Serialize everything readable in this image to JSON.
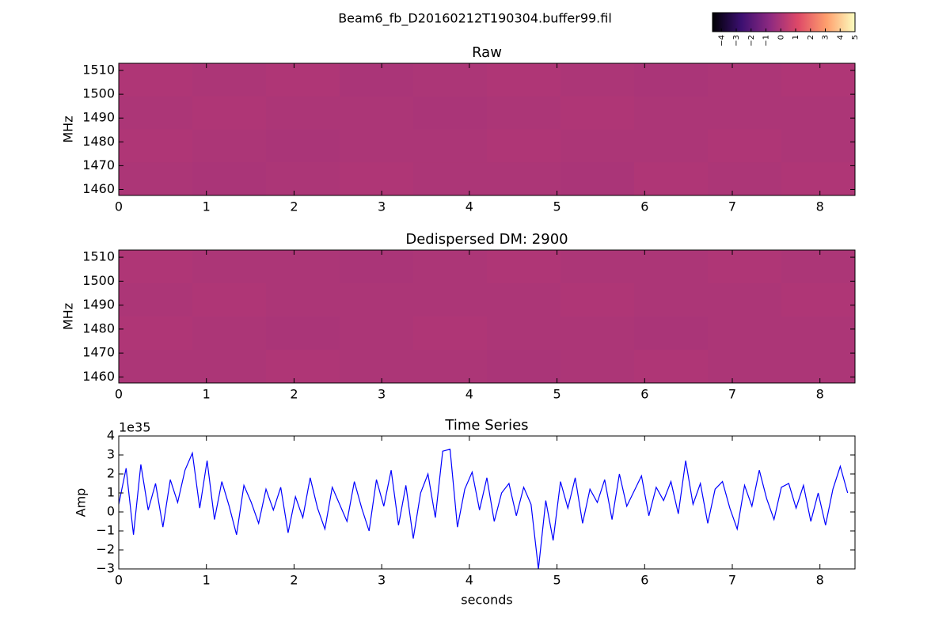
{
  "figure_title": "Beam6_fb_D20160212T190304.buffer99.fil",
  "colorbar": {
    "clim": [
      -4.6,
      5
    ],
    "ticks": [
      {
        "value": -4,
        "label": "−4"
      },
      {
        "value": -3,
        "label": "−3"
      },
      {
        "value": -2,
        "label": "−2"
      },
      {
        "value": -1,
        "label": "−1"
      },
      0,
      1,
      2,
      3,
      4,
      5
    ],
    "colormap": [
      "#000004",
      "#3b0f70",
      "#8c2981",
      "#de4968",
      "#fe9f6d",
      "#fcfdbf"
    ]
  },
  "chart_data": [
    {
      "type": "heatmap",
      "title": "Raw",
      "ylabel": "MHz",
      "xlim": [
        0,
        8.4
      ],
      "ylim": [
        1457.5,
        1513
      ],
      "xticks": [
        0,
        1,
        2,
        3,
        4,
        5,
        6,
        7,
        8
      ],
      "yticks": [
        1460,
        1470,
        1480,
        1490,
        1500,
        1510
      ],
      "z": [
        [
          0.05,
          0,
          0.05,
          -0.05,
          0,
          0.05,
          0,
          -0.05,
          0,
          0.05
        ],
        [
          0,
          0.05,
          0,
          0,
          -0.05,
          0,
          0.05,
          0,
          0,
          0
        ],
        [
          0.05,
          0,
          -0.05,
          0,
          0,
          0.05,
          0,
          0,
          0.05,
          0
        ],
        [
          0,
          -0.05,
          0,
          0.05,
          0,
          0,
          -0.05,
          0.05,
          0,
          0.05
        ]
      ]
    },
    {
      "type": "heatmap",
      "title": "Dedispersed DM: 2900",
      "ylabel": "MHz",
      "xlim": [
        0,
        8.4
      ],
      "ylim": [
        1457.5,
        1513
      ],
      "xticks": [
        0,
        1,
        2,
        3,
        4,
        5,
        6,
        7,
        8
      ],
      "yticks": [
        1460,
        1470,
        1480,
        1490,
        1500,
        1510
      ],
      "z": [
        [
          0.05,
          0,
          0,
          -0.05,
          0,
          0.05,
          0,
          0,
          0.05,
          0
        ],
        [
          0,
          0.05,
          0,
          0,
          0,
          0,
          0.05,
          0,
          0,
          0.05
        ],
        [
          0.05,
          0,
          -0.05,
          0,
          0.05,
          0,
          0,
          -0.05,
          0,
          0
        ],
        [
          0,
          0,
          0.05,
          0,
          0,
          -0.05,
          0,
          0.05,
          0,
          0
        ]
      ]
    },
    {
      "type": "line",
      "title": "Time Series",
      "xlabel": "seconds",
      "ylabel": "Amp",
      "offset_label": "1e35",
      "xlim": [
        0,
        8.4
      ],
      "ylim": [
        -3,
        4
      ],
      "xticks": [
        0,
        1,
        2,
        3,
        4,
        5,
        6,
        7,
        8
      ],
      "yticks": [
        {
          "value": -3,
          "label": "−3"
        },
        {
          "value": -2,
          "label": "−2"
        },
        {
          "value": -1,
          "label": "−1"
        },
        0,
        1,
        2,
        3,
        4
      ],
      "x": [
        0,
        0.084,
        0.168,
        0.252,
        0.336,
        0.42,
        0.504,
        0.588,
        0.672,
        0.756,
        0.84,
        0.924,
        1.008,
        1.092,
        1.176,
        1.26,
        1.344,
        1.428,
        1.512,
        1.596,
        1.68,
        1.764,
        1.848,
        1.932,
        2.016,
        2.1,
        2.184,
        2.268,
        2.352,
        2.436,
        2.52,
        2.604,
        2.688,
        2.772,
        2.856,
        2.94,
        3.024,
        3.108,
        3.192,
        3.276,
        3.36,
        3.444,
        3.528,
        3.612,
        3.696,
        3.78,
        3.864,
        3.948,
        4.032,
        4.116,
        4.2,
        4.284,
        4.368,
        4.452,
        4.536,
        4.62,
        4.704,
        4.788,
        4.872,
        4.956,
        5.04,
        5.124,
        5.208,
        5.292,
        5.376,
        5.46,
        5.544,
        5.628,
        5.712,
        5.796,
        5.88,
        5.964,
        6.048,
        6.132,
        6.216,
        6.3,
        6.384,
        6.468,
        6.552,
        6.636,
        6.72,
        6.804,
        6.888,
        6.972,
        7.056,
        7.14,
        7.224,
        7.308,
        7.392,
        7.476,
        7.56,
        7.644,
        7.728,
        7.812,
        7.896,
        7.98,
        8.064,
        8.148,
        8.232,
        8.316
      ],
      "series": [
        {
          "name": "Amp",
          "color": "#0000ff",
          "values": [
            0.4,
            2.3,
            -1.2,
            2.5,
            0.1,
            1.5,
            -0.8,
            1.7,
            0.5,
            2.2,
            3.1,
            0.2,
            2.7,
            -0.4,
            1.6,
            0.3,
            -1.2,
            1.4,
            0.5,
            -0.6,
            1.2,
            0.1,
            1.3,
            -1.1,
            0.8,
            -0.3,
            1.8,
            0.2,
            -0.9,
            1.3,
            0.4,
            -0.5,
            1.6,
            0.2,
            -1.0,
            1.7,
            0.3,
            2.2,
            -0.7,
            1.4,
            -1.4,
            1.0,
            2.0,
            -0.3,
            3.2,
            3.3,
            -0.8,
            1.2,
            2.1,
            0.1,
            1.8,
            -0.5,
            1.0,
            1.5,
            -0.2,
            1.3,
            0.4,
            -3.0,
            0.6,
            -1.5,
            1.6,
            0.2,
            1.8,
            -0.6,
            1.2,
            0.5,
            1.7,
            -0.4,
            2.0,
            0.3,
            1.1,
            1.9,
            -0.2,
            1.3,
            0.6,
            1.6,
            -0.1,
            2.7,
            0.4,
            1.5,
            -0.6,
            1.2,
            1.6,
            0.2,
            -0.9,
            1.4,
            0.3,
            2.2,
            0.7,
            -0.4,
            1.3,
            1.5,
            0.2,
            1.4,
            -0.5,
            1.0,
            -0.7,
            1.2,
            2.4,
            1.0
          ]
        }
      ]
    }
  ]
}
